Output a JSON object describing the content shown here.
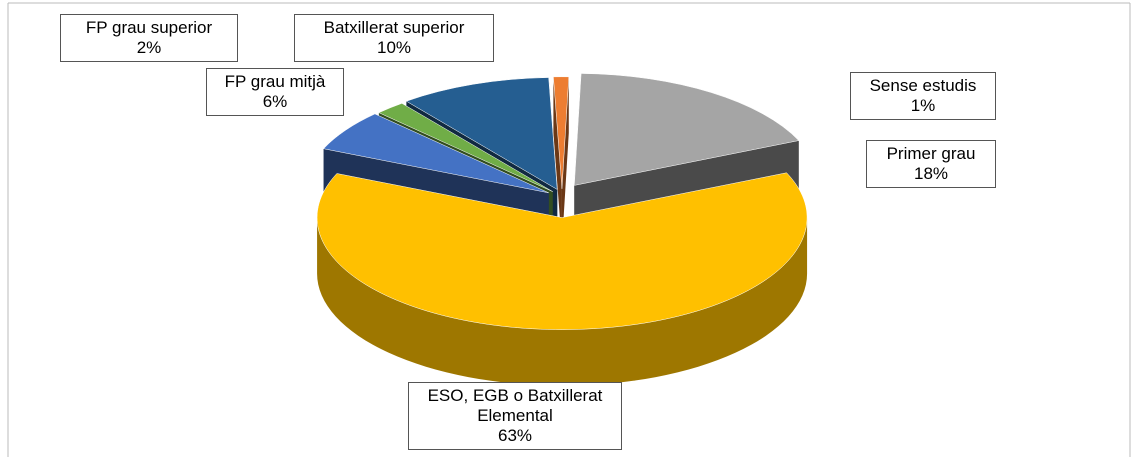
{
  "chart_data": {
    "type": "pie",
    "categories": [
      "Sense estudis",
      "Primer grau",
      "ESO, EGB o Batxillerat Elemental",
      "FP grau mitjà",
      "FP grau superior",
      "Batxillerat superior"
    ],
    "values": [
      1,
      18,
      63,
      6,
      2,
      10
    ],
    "value_labels": [
      "1%",
      "18%",
      "63%",
      "6%",
      "2%",
      "10%"
    ],
    "colors": [
      "#ed7d31",
      "#a5a5a5",
      "#ffc000",
      "#4472c4",
      "#70ad47",
      "#255e91"
    ]
  }
}
